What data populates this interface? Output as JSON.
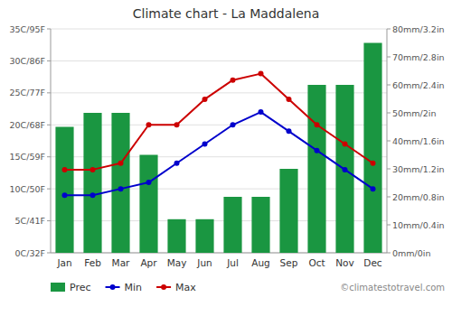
{
  "chart_data": {
    "type": "bar",
    "title": "Climate chart - La Maddalena",
    "categories": [
      "Jan",
      "Feb",
      "Mar",
      "Apr",
      "May",
      "Jun",
      "Jul",
      "Aug",
      "Sep",
      "Oct",
      "Nov",
      "Dec"
    ],
    "series": [
      {
        "name": "Prec",
        "type": "bar",
        "axis": "y2",
        "color": "#1a9641",
        "values": [
          45,
          50,
          50,
          35,
          12,
          12,
          20,
          20,
          30,
          60,
          60,
          75
        ]
      },
      {
        "name": "Min",
        "type": "line",
        "color": "#0000cc",
        "marker": "circle",
        "values": [
          9,
          9,
          10,
          11,
          14,
          17,
          20,
          22,
          19,
          16,
          13,
          10
        ]
      },
      {
        "name": "Max",
        "type": "line",
        "color": "#cc0000",
        "marker": "circle",
        "values": [
          13,
          13,
          14,
          20,
          20,
          24,
          27,
          28,
          24,
          20,
          17,
          14
        ]
      }
    ],
    "ylim": [
      0,
      35
    ],
    "yticks": [
      {
        "value": 0,
        "label": "0C/32F"
      },
      {
        "value": 5,
        "label": "5C/41F"
      },
      {
        "value": 10,
        "label": "10C/50F"
      },
      {
        "value": 15,
        "label": "15C/59F"
      },
      {
        "value": 20,
        "label": "20C/68F"
      },
      {
        "value": 25,
        "label": "25C/77F"
      },
      {
        "value": 30,
        "label": "30C/86F"
      },
      {
        "value": 35,
        "label": "35C/95F"
      }
    ],
    "y2lim": [
      0,
      80
    ],
    "y2ticks": [
      {
        "value": 0,
        "label": "0mm/0in"
      },
      {
        "value": 10,
        "label": "10mm/0.4in"
      },
      {
        "value": 20,
        "label": "20mm/0.8in"
      },
      {
        "value": 30,
        "label": "30mm/1.2in"
      },
      {
        "value": 40,
        "label": "40mm/1.6in"
      },
      {
        "value": 50,
        "label": "50mm/2in"
      },
      {
        "value": 60,
        "label": "60mm/2.4in"
      },
      {
        "value": 70,
        "label": "70mm/2.8in"
      },
      {
        "value": 80,
        "label": "80mm/3.2in"
      }
    ],
    "grid": true,
    "legend": "lower-left",
    "annotations": [
      "©climatestotravel.com"
    ]
  }
}
